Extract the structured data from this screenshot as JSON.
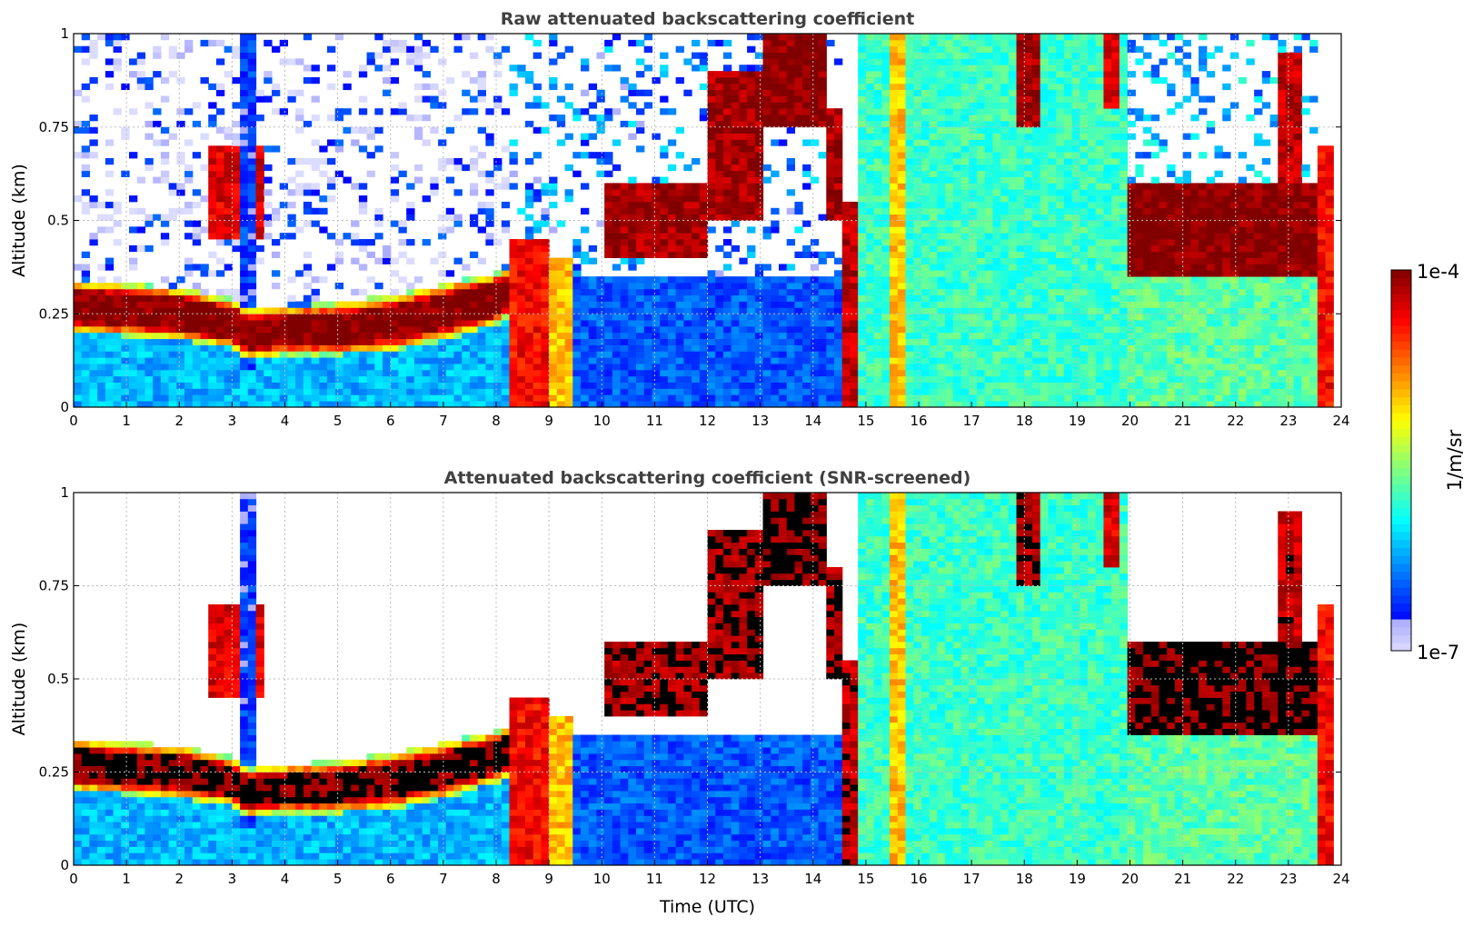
{
  "chart_data": {
    "type": "heatmap",
    "panels": [
      {
        "title": "Raw attenuated backscattering coefficient",
        "ylabel": "Altitude (km)",
        "xlabel": "",
        "screened": false
      },
      {
        "title": "Attenuated backscattering coefficient (SNR-screened)",
        "ylabel": "Altitude (km)",
        "xlabel": "Time (UTC)",
        "screened": true
      }
    ],
    "xlim": [
      0,
      24
    ],
    "ylim": [
      0,
      1
    ],
    "xticks": [
      "0",
      "1",
      "2",
      "3",
      "4",
      "5",
      "6",
      "7",
      "8",
      "9",
      "10",
      "11",
      "12",
      "13",
      "14",
      "15",
      "16",
      "17",
      "18",
      "19",
      "20",
      "21",
      "22",
      "23",
      "24"
    ],
    "yticks": [
      "0",
      "0.25",
      "0.5",
      "0.75",
      "1"
    ],
    "grid": true,
    "colorbar": {
      "label": "1/m/sr",
      "min_label": "1e-7",
      "max_label": "1e-4",
      "log10_range": [
        -7,
        -4
      ],
      "colormap": "jet",
      "placement": "right"
    },
    "aerosol_layer": {
      "time_h": [
        0,
        1,
        2,
        3,
        3.3,
        4,
        5,
        6,
        7,
        8,
        8.3
      ],
      "base_km": [
        0.2,
        0.19,
        0.18,
        0.16,
        0.13,
        0.14,
        0.14,
        0.15,
        0.18,
        0.22,
        0.25
      ],
      "top_km": [
        0.34,
        0.33,
        0.32,
        0.29,
        0.26,
        0.27,
        0.28,
        0.3,
        0.33,
        0.36,
        0.38
      ],
      "log10_beta": -4
    },
    "regions": [
      {
        "t": [
          0,
          8.3
        ],
        "z": [
          0,
          "base"
        ],
        "log10_beta": -6.2
      },
      {
        "t": [
          0,
          8.3
        ],
        "z": [
          "top",
          1
        ],
        "log10_beta": -7.2,
        "sparse": true
      },
      {
        "t": [
          2.6,
          3.6
        ],
        "z": [
          0.45,
          0.7
        ],
        "log10_beta": -4.3
      },
      {
        "t": [
          3.2,
          3.4
        ],
        "z": [
          0.1,
          1
        ],
        "log10_beta": -6.6
      },
      {
        "t": [
          8.3,
          9.0
        ],
        "z": [
          0,
          0.45
        ],
        "log10_beta": -4.4
      },
      {
        "t": [
          9.0,
          9.5
        ],
        "z": [
          0,
          0.4
        ],
        "log10_beta": -5.0
      },
      {
        "t": [
          8.3,
          9.5
        ],
        "z": [
          0.45,
          1
        ],
        "log10_beta": -6.8,
        "sparse": true
      },
      {
        "t": [
          9.5,
          14.6
        ],
        "z": [
          0,
          0.35
        ],
        "log10_beta": -6.5
      },
      {
        "t": [
          9.5,
          14.6
        ],
        "z": [
          0.35,
          1
        ],
        "log10_beta": -6.8,
        "sparse": true
      },
      {
        "t": [
          10,
          12
        ],
        "z": [
          0.4,
          0.6
        ],
        "log10_beta": -4.1
      },
      {
        "t": [
          12,
          13
        ],
        "z": [
          0.5,
          0.9
        ],
        "log10_beta": -4.1
      },
      {
        "t": [
          13,
          14.2
        ],
        "z": [
          0.75,
          1
        ],
        "log10_beta": -4.0
      },
      {
        "t": [
          14.2,
          14.6
        ],
        "z": [
          0.5,
          0.8
        ],
        "log10_beta": -4.1
      },
      {
        "t": [
          14.6,
          14.85
        ],
        "z": [
          0,
          0.55
        ],
        "log10_beta": -4.2
      },
      {
        "t": [
          14.85,
          20
        ],
        "z": [
          0,
          1
        ],
        "log10_beta": -5.8
      },
      {
        "t": [
          15.5,
          15.7
        ],
        "z": [
          0,
          1
        ],
        "log10_beta": -5.0
      },
      {
        "t": [
          17.8,
          18.3
        ],
        "z": [
          0.75,
          1
        ],
        "log10_beta": -4.1
      },
      {
        "t": [
          19.5,
          19.8
        ],
        "z": [
          0.8,
          1
        ],
        "log10_beta": -4.3
      },
      {
        "t": [
          20,
          23.6
        ],
        "z": [
          0,
          0.35
        ],
        "log10_beta": -5.7
      },
      {
        "t": [
          20,
          23.6
        ],
        "z": [
          0.35,
          0.6
        ],
        "log10_beta": -4.0
      },
      {
        "t": [
          20,
          23.6
        ],
        "z": [
          0.6,
          1
        ],
        "log10_beta": -6.6,
        "sparse": true
      },
      {
        "t": [
          22.8,
          23.3
        ],
        "z": [
          0.6,
          0.95
        ],
        "log10_beta": -4.2
      },
      {
        "t": [
          23.6,
          23.85
        ],
        "z": [
          0,
          0.7
        ],
        "log10_beta": -4.4
      }
    ]
  }
}
